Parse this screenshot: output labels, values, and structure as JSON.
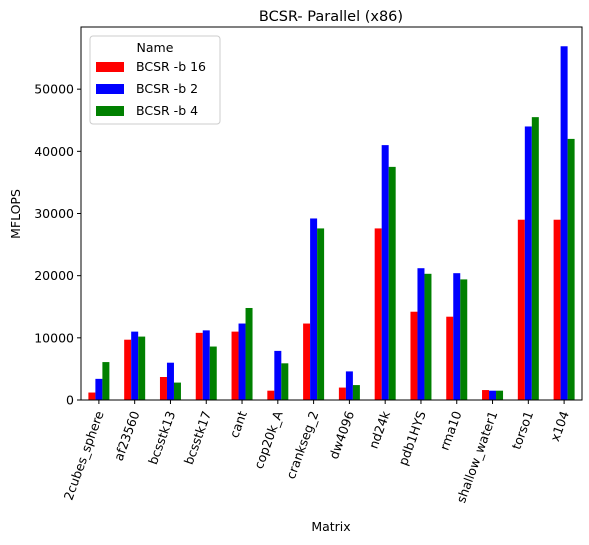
{
  "chart_data": {
    "type": "bar",
    "title": "BCSR- Parallel (x86)",
    "xlabel": "Matrix",
    "ylabel": "MFLOPS",
    "ylim": [
      0,
      60000
    ],
    "yticks": [
      0,
      10000,
      20000,
      30000,
      40000,
      50000
    ],
    "grid": false,
    "legend": {
      "title": "Name",
      "position": "top-left"
    },
    "categories": [
      "2cubes_sphere",
      "af23560",
      "bcsstk13",
      "bcsstk17",
      "cant",
      "cop20k_A",
      "crankseg_2",
      "dw4096",
      "nd24k",
      "pdb1HYS",
      "rma10",
      "shallow_water1",
      "torso1",
      "x104"
    ],
    "series": [
      {
        "name": "BCSR -b 16",
        "color": "#ff0000",
        "values": [
          1200,
          9700,
          3700,
          10800,
          11000,
          1500,
          12300,
          2000,
          27600,
          14200,
          13400,
          1600,
          29000,
          29000
        ]
      },
      {
        "name": "BCSR -b 2",
        "color": "#0000ff",
        "values": [
          3400,
          11000,
          6000,
          11200,
          12300,
          7900,
          29200,
          4600,
          41000,
          21200,
          20400,
          1500,
          44000,
          56900
        ]
      },
      {
        "name": "BCSR -b 4",
        "color": "#008000",
        "values": [
          6100,
          10200,
          2800,
          8600,
          14800,
          5900,
          27600,
          2400,
          37500,
          20300,
          19400,
          1500,
          45500,
          42000
        ]
      }
    ]
  }
}
